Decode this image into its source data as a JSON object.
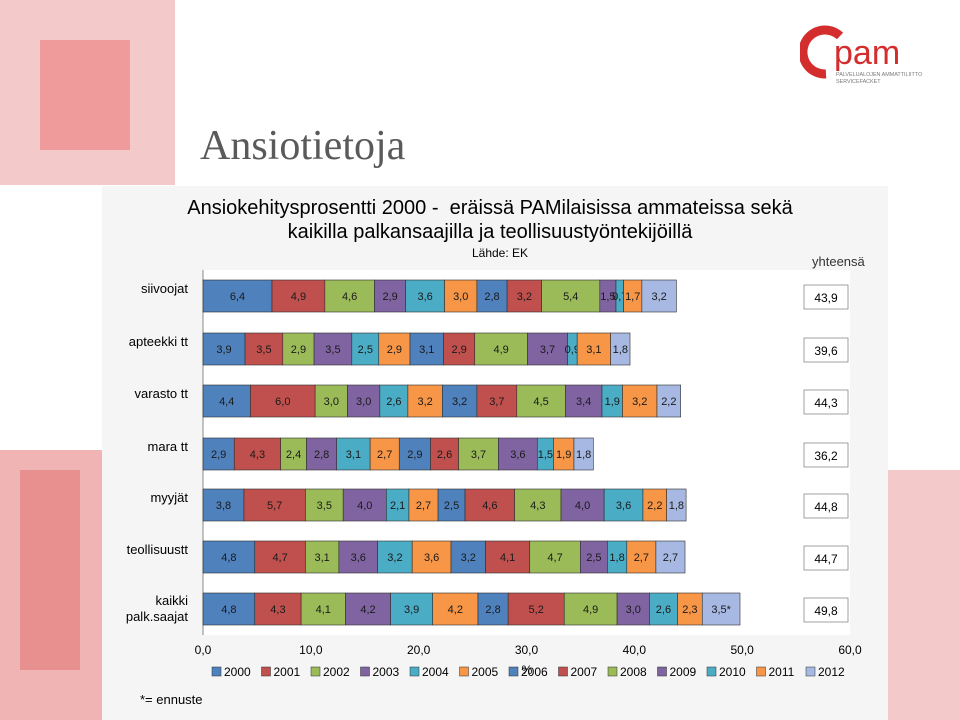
{
  "slide_title": "Ansiotietoja",
  "footnote": "*= ennuste",
  "logo": {
    "text": "pam",
    "tagline_1": "PALVELUALOJEN AMMATTILIITTO",
    "tagline_2": "SERVICEFACKET"
  },
  "chart_data": {
    "type": "bar",
    "orientation": "horizontal",
    "stacked": true,
    "title_line1": "Ansiokehitysprosentti 2000 -  eräissä PAMilaisissa ammateissa sekä",
    "title_line2": "kaikilla palkansaajilla ja teollisuustyöntekijöillä",
    "source": "Lähde: EK",
    "totals_header": "yhteensä",
    "xlabel": "%",
    "xlim": [
      0,
      60
    ],
    "xticks": [
      "0,0",
      "10,0",
      "20,0",
      "30,0",
      "40,0",
      "50,0",
      "60,0"
    ],
    "grid": false,
    "legend_position": "bottom",
    "categories": [
      "siivoojat",
      "apteekki tt",
      "varasto tt",
      "mara tt",
      "myyjät",
      "teollisuustt",
      "kaikki palk.saajat"
    ],
    "series": [
      {
        "name": "2000",
        "color": "#4f81bd",
        "values": [
          6.4,
          3.9,
          4.4,
          2.9,
          3.8,
          4.8,
          4.8
        ]
      },
      {
        "name": "2001",
        "color": "#c0504d",
        "values": [
          4.9,
          3.5,
          6.0,
          4.3,
          5.7,
          4.7,
          4.3
        ]
      },
      {
        "name": "2002",
        "color": "#9bbb59",
        "values": [
          4.6,
          2.9,
          3.0,
          2.4,
          3.5,
          3.1,
          4.1
        ]
      },
      {
        "name": "2003",
        "color": "#8064a2",
        "values": [
          2.9,
          3.5,
          3.0,
          2.8,
          4.0,
          3.6,
          4.2
        ]
      },
      {
        "name": "2004",
        "color": "#4bacc6",
        "values": [
          3.6,
          2.5,
          2.6,
          3.1,
          2.1,
          3.2,
          3.9
        ]
      },
      {
        "name": "2005",
        "color": "#f79646",
        "values": [
          3.0,
          2.9,
          3.2,
          2.7,
          2.7,
          3.6,
          4.2
        ]
      },
      {
        "name": "2006",
        "color": "#4f81bd",
        "values": [
          2.8,
          3.1,
          3.2,
          2.9,
          2.5,
          3.2,
          2.8
        ]
      },
      {
        "name": "2007",
        "color": "#c0504d",
        "values": [
          3.2,
          2.9,
          3.7,
          2.6,
          4.6,
          4.1,
          5.2
        ]
      },
      {
        "name": "2008",
        "color": "#9bbb59",
        "values": [
          5.4,
          4.9,
          4.5,
          3.7,
          4.3,
          4.7,
          4.9
        ]
      },
      {
        "name": "2009",
        "color": "#8064a2",
        "values": [
          1.5,
          3.7,
          3.4,
          3.6,
          4.0,
          2.5,
          3.0
        ]
      },
      {
        "name": "2010",
        "color": "#4bacc6",
        "values": [
          0.7,
          0.9,
          1.9,
          1.5,
          3.6,
          1.8,
          2.6
        ]
      },
      {
        "name": "2011",
        "color": "#f79646",
        "values": [
          1.7,
          3.1,
          3.2,
          1.9,
          2.2,
          2.7,
          2.3
        ]
      },
      {
        "name": "2012",
        "color": "#a7b9e3",
        "values": [
          3.2,
          1.8,
          2.2,
          1.8,
          1.8,
          2.7,
          3.5
        ]
      }
    ],
    "value_label_overrides": [
      {
        "category": "kaikki palk.saajat",
        "series": "2012",
        "label": "3,5*"
      }
    ],
    "totals": [
      "43,9",
      "39,6",
      "44,3",
      "36,2",
      "44,8",
      "44,7",
      "49,8"
    ]
  }
}
